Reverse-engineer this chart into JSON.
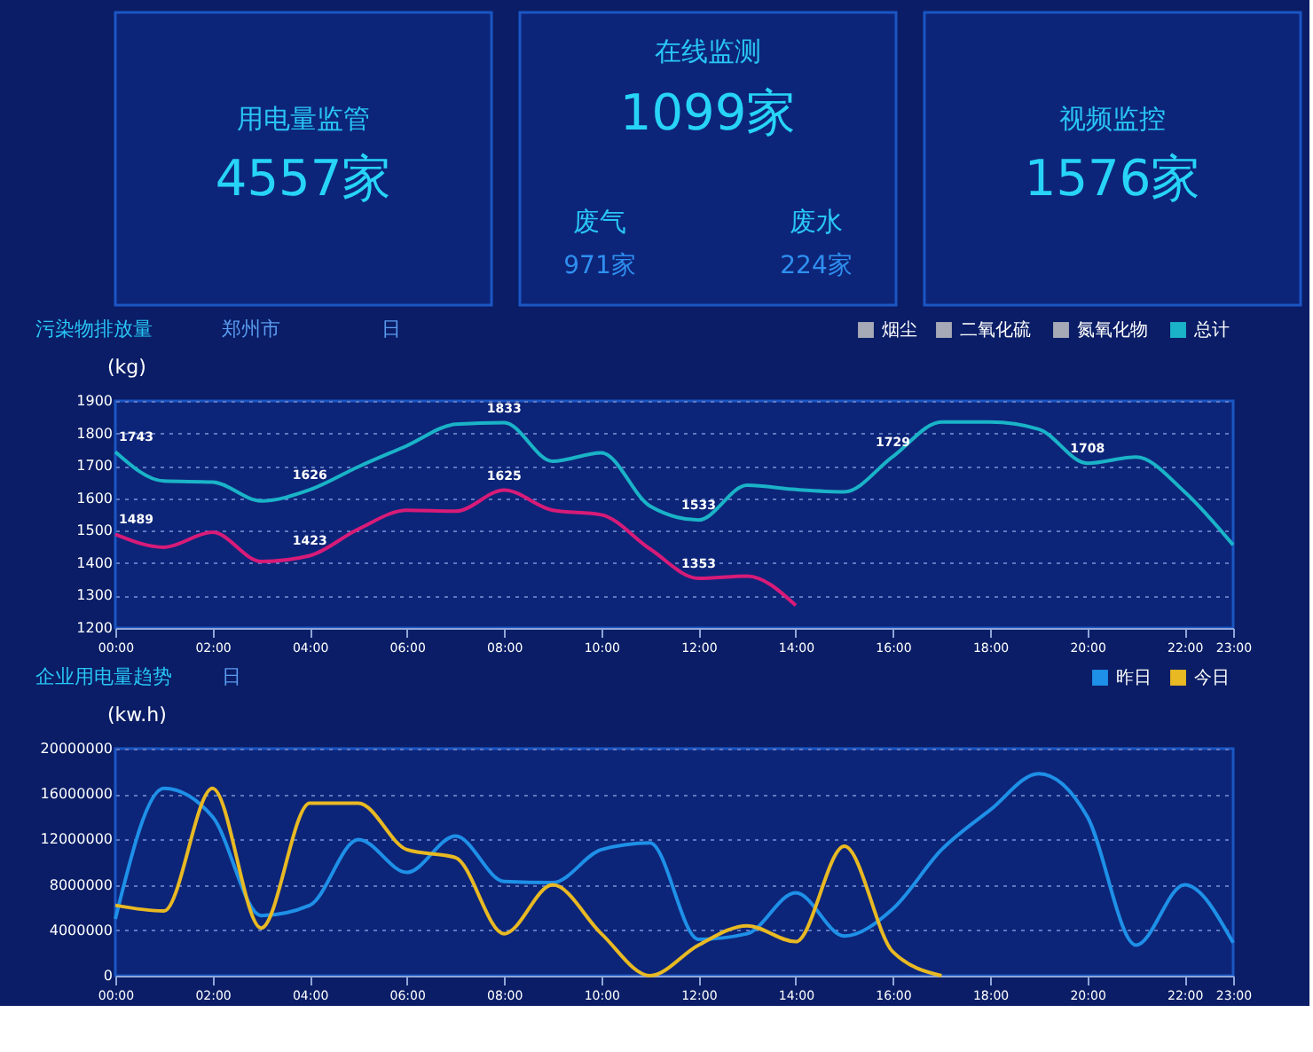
{
  "chart_data": [
    {
      "type": "other",
      "title": "用电量监管",
      "annotations": [
        "4557家"
      ]
    },
    {
      "type": "other",
      "title": "在线监测",
      "annotations": [
        "1099家",
        "废气",
        "971家",
        "废水",
        "224家"
      ]
    },
    {
      "type": "other",
      "title": "视频监控",
      "annotations": [
        "1576家"
      ]
    },
    {
      "type": "line",
      "title": "污染物排放量",
      "ylabel": "(kg)",
      "grid": "y",
      "legend": "top right",
      "x": [
        0,
        1,
        2,
        3,
        4,
        5,
        6,
        7,
        8,
        9,
        10,
        11,
        12,
        13,
        14,
        15,
        16,
        17,
        18,
        19,
        20,
        21,
        22,
        23
      ],
      "xlim": [
        0,
        23
      ],
      "xticks": [
        {
          "value": 0,
          "label": "00:00"
        },
        {
          "value": 2,
          "label": "02:00"
        },
        {
          "value": 4,
          "label": "04:00"
        },
        {
          "value": 6,
          "label": "06:00"
        },
        {
          "value": 8,
          "label": "08:00"
        },
        {
          "value": 10,
          "label": "10:00"
        },
        {
          "value": 12,
          "label": "12:00"
        },
        {
          "value": 14,
          "label": "14:00"
        },
        {
          "value": 16,
          "label": "16:00"
        },
        {
          "value": 18,
          "label": "18:00"
        },
        {
          "value": 20,
          "label": "20:00"
        },
        {
          "value": 22,
          "label": "22:00"
        },
        {
          "value": 23,
          "label": "23:00"
        }
      ],
      "ylim": [
        1200,
        1900
      ],
      "yticks": [
        1200,
        1300,
        1400,
        1500,
        1600,
        1700,
        1800,
        1900
      ],
      "series": [
        {
          "name": "烟尘",
          "color": "#a6a9b6",
          "values": [
            null,
            null,
            null,
            null,
            null,
            null,
            null,
            null,
            null,
            null,
            null,
            null,
            null,
            null,
            null,
            null,
            null,
            null,
            null,
            null,
            null,
            null,
            null,
            null
          ]
        },
        {
          "name": "二氧化硫",
          "color": "#a6a9b6",
          "values": [
            null,
            null,
            null,
            null,
            null,
            null,
            null,
            null,
            null,
            null,
            null,
            null,
            null,
            null,
            null,
            null,
            null,
            null,
            null,
            null,
            null,
            null,
            null,
            null
          ]
        },
        {
          "name": "氮氧化物",
          "color": "#a6a9b6",
          "values": [
            null,
            null,
            null,
            null,
            null,
            null,
            null,
            null,
            null,
            null,
            null,
            null,
            null,
            null,
            null,
            null,
            null,
            null,
            null,
            null,
            null,
            null,
            null,
            null
          ]
        },
        {
          "name": "总计",
          "color": "#1ab3c8",
          "values": [
            1743,
            1653,
            1650,
            1592,
            1626,
            1697,
            1762,
            1828,
            1833,
            1714,
            1740,
            1576,
            1533,
            1640,
            1627,
            1620,
            1729,
            1835,
            1835,
            1813,
            1708,
            1727,
            1620,
            1456
          ]
        },
        {
          "color": "#d81b78",
          "values": [
            1489,
            1449,
            1495,
            1405,
            1423,
            1505,
            1563,
            1560,
            1625,
            1563,
            1549,
            1444,
            1353,
            1360,
            1270,
            null,
            null,
            null,
            null,
            null,
            null,
            null,
            null,
            null
          ]
        }
      ],
      "annotations": [
        "郑州市",
        "日",
        {
          "text": "1743",
          "x": 0,
          "y": 1743
        },
        {
          "text": "1489",
          "x": 0,
          "y": 1489
        },
        {
          "text": "1626",
          "x": 4,
          "y": 1626
        },
        {
          "text": "1423",
          "x": 4,
          "y": 1423
        },
        {
          "text": "1833",
          "x": 8,
          "y": 1833
        },
        {
          "text": "1625",
          "x": 8,
          "y": 1625
        },
        {
          "text": "1533",
          "x": 12,
          "y": 1533
        },
        {
          "text": "1353",
          "x": 12,
          "y": 1353
        },
        {
          "text": "1729",
          "x": 16,
          "y": 1729
        },
        {
          "text": "1708",
          "x": 20,
          "y": 1708
        }
      ]
    },
    {
      "type": "line",
      "title": "企业用电量趋势",
      "ylabel": "(kw.h)",
      "grid": "y",
      "legend": "top right",
      "x": [
        0,
        1,
        2,
        3,
        4,
        5,
        6,
        7,
        8,
        9,
        10,
        11,
        12,
        13,
        14,
        15,
        16,
        17,
        18,
        19,
        20,
        21,
        22,
        23
      ],
      "xlim": [
        0,
        23
      ],
      "xticks": [
        {
          "value": 0,
          "label": "00:00"
        },
        {
          "value": 2,
          "label": "02:00"
        },
        {
          "value": 4,
          "label": "04:00"
        },
        {
          "value": 6,
          "label": "06:00"
        },
        {
          "value": 8,
          "label": "08:00"
        },
        {
          "value": 10,
          "label": "10:00"
        },
        {
          "value": 12,
          "label": "12:00"
        },
        {
          "value": 14,
          "label": "14:00"
        },
        {
          "value": 16,
          "label": "16:00"
        },
        {
          "value": 18,
          "label": "18:00"
        },
        {
          "value": 20,
          "label": "20:00"
        },
        {
          "value": 22,
          "label": "22:00"
        },
        {
          "value": 23,
          "label": "23:00"
        }
      ],
      "ylim": [
        0,
        20000000
      ],
      "yticks": [
        0,
        4000000,
        8000000,
        12000000,
        16000000,
        20000000
      ],
      "series": [
        {
          "name": "昨日",
          "color": "#1e90e8",
          "values": [
            5000000,
            16500000,
            14000000,
            5300000,
            6200000,
            12000000,
            9100000,
            12300000,
            8300000,
            8200000,
            11100000,
            11700000,
            3200000,
            3700000,
            7300000,
            3500000,
            5900000,
            11100000,
            14600000,
            17800000,
            14000000,
            2700000,
            8000000,
            2900000
          ]
        },
        {
          "name": "今日",
          "color": "#e8b923",
          "values": [
            6200000,
            5700000,
            16500000,
            4200000,
            15200000,
            15200000,
            11100000,
            10400000,
            3700000,
            8000000,
            3700000,
            0,
            2700000,
            4400000,
            3000000,
            11400000,
            2100000,
            0,
            null,
            null,
            null,
            null,
            null,
            null
          ]
        }
      ],
      "annotations": [
        "日"
      ]
    }
  ]
}
